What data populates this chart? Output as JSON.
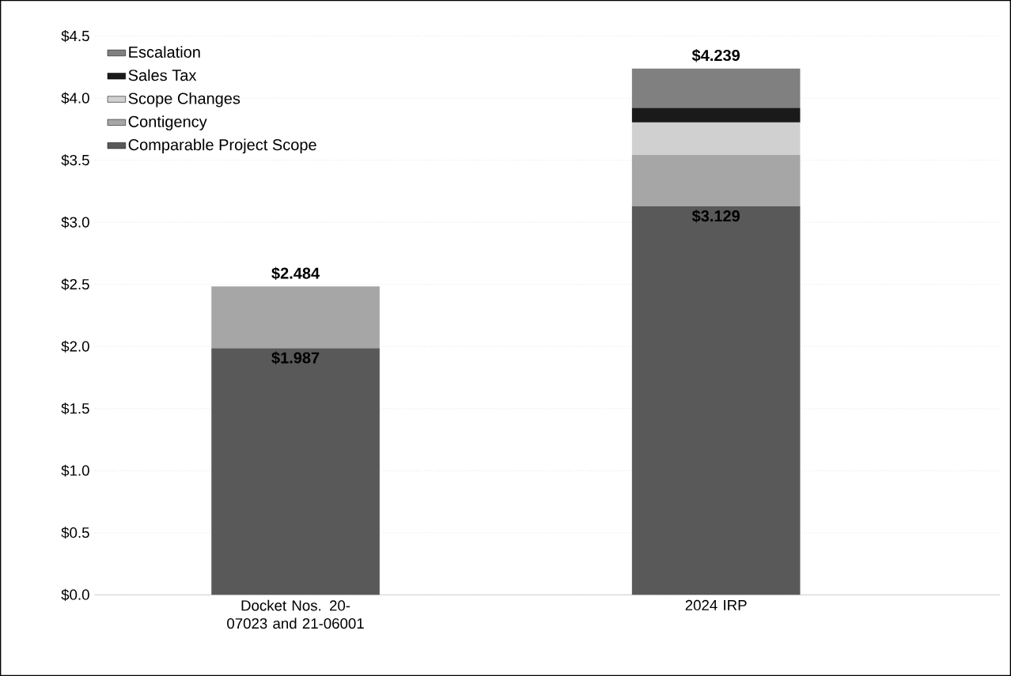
{
  "chart_data": {
    "type": "bar",
    "stacked": true,
    "categories": [
      "Docket Nos. 20-07023 and 21-06001",
      "2024 IRP"
    ],
    "series": [
      {
        "name": "Comparable Project Scope",
        "color": "#595959",
        "values": [
          1.987,
          3.129
        ],
        "value_labels": [
          "$1.987",
          "$3.129"
        ]
      },
      {
        "name": "Contigency",
        "color": "#a6a6a6",
        "values": [
          0.497,
          0.414
        ]
      },
      {
        "name": "Scope Changes",
        "color": "#d0d0d0",
        "values": [
          null,
          0.263
        ]
      },
      {
        "name": "Sales Tax",
        "color": "#1a1a1a",
        "values": [
          null,
          0.117
        ]
      },
      {
        "name": "Escalation",
        "color": "#808080",
        "values": [
          null,
          0.316
        ]
      }
    ],
    "totals": [
      "$2.484",
      "$4.239"
    ],
    "ylim": [
      0,
      4.5
    ],
    "yticks": [
      {
        "value": 0,
        "label": "$0.0"
      },
      {
        "value": 0.5,
        "label": "$0.5"
      },
      {
        "value": 1,
        "label": "$1.0"
      },
      {
        "value": 1.5,
        "label": "$1.5"
      },
      {
        "value": 2,
        "label": "$2.0"
      },
      {
        "value": 2.5,
        "label": "$2.5"
      },
      {
        "value": 3,
        "label": "$3.0"
      },
      {
        "value": 3.5,
        "label": "$3.5"
      },
      {
        "value": 4,
        "label": "$4.0"
      },
      {
        "value": 4.5,
        "label": "$4.5"
      }
    ],
    "grid": "y",
    "legend": "top left"
  }
}
